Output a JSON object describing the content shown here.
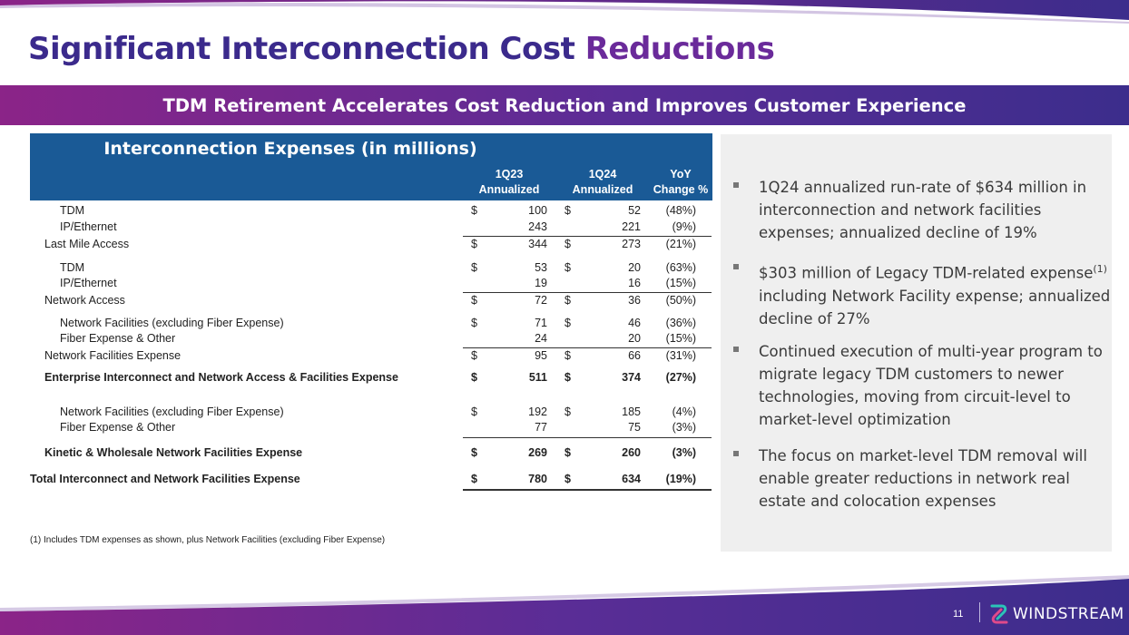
{
  "header": {
    "title_main": "Significant Interconnection Cost",
    "title_accent": "Reductions",
    "banner": "TDM Retirement Accelerates Cost Reduction and Improves Customer Experience"
  },
  "table": {
    "title": "Interconnection Expenses (in millions)",
    "col1": [
      "1Q23",
      "Annualized"
    ],
    "col2": [
      "1Q24",
      "Annualized"
    ],
    "col3": [
      "YoY",
      "Change %"
    ],
    "rows": [
      {
        "label": "TDM",
        "d1": "$",
        "v1": "100",
        "d2": "$",
        "v2": "52",
        "ch": "(48%)"
      },
      {
        "label": "IP/Ethernet",
        "d1": "",
        "v1": "243",
        "d2": "",
        "v2": "221",
        "ch": "(9%)"
      },
      {
        "label": "Last Mile Access",
        "d1": "$",
        "v1": "344",
        "d2": "$",
        "v2": "273",
        "ch": "(21%)"
      },
      {
        "label": "TDM",
        "d1": "$",
        "v1": "53",
        "d2": "$",
        "v2": "20",
        "ch": "(63%)"
      },
      {
        "label": "IP/Ethernet",
        "d1": "",
        "v1": "19",
        "d2": "",
        "v2": "16",
        "ch": "(15%)"
      },
      {
        "label": "Network Access",
        "d1": "$",
        "v1": "72",
        "d2": "$",
        "v2": "36",
        "ch": "(50%)"
      },
      {
        "label": "Network Facilities (excluding Fiber Expense)",
        "d1": "$",
        "v1": "71",
        "d2": "$",
        "v2": "46",
        "ch": "(36%)"
      },
      {
        "label": "Fiber Expense & Other",
        "d1": "",
        "v1": "24",
        "d2": "",
        "v2": "20",
        "ch": "(15%)"
      },
      {
        "label": "Network Facilities Expense",
        "d1": "$",
        "v1": "95",
        "d2": "$",
        "v2": "66",
        "ch": "(31%)"
      },
      {
        "label": "Enterprise Interconnect and Network Access & Facilities Expense",
        "d1": "$",
        "v1": "511",
        "d2": "$",
        "v2": "374",
        "ch": "(27%)"
      },
      {
        "label": "Network Facilities (excluding Fiber Expense)",
        "d1": "$",
        "v1": "192",
        "d2": "$",
        "v2": "185",
        "ch": "(4%)"
      },
      {
        "label": "Fiber Expense & Other",
        "d1": "",
        "v1": "77",
        "d2": "",
        "v2": "75",
        "ch": "(3%)"
      },
      {
        "label": "Kinetic & Wholesale Network Facilities Expense",
        "d1": "$",
        "v1": "269",
        "d2": "$",
        "v2": "260",
        "ch": "(3%)"
      },
      {
        "label": "Total Interconnect and Network Facilities Expense",
        "d1": "$",
        "v1": "780",
        "d2": "$",
        "v2": "634",
        "ch": "(19%)"
      }
    ],
    "footnote": "(1) Includes TDM expenses as shown, plus Network Facilities (excluding Fiber Expense)"
  },
  "bullets": [
    {
      "text": "1Q24 annualized run-rate of $634 million in interconnection and network facilities expenses; annualized decline of 19%"
    },
    {
      "pre": "$303 million of Legacy TDM-related expense",
      "sup": "(1)",
      "post": " including Network Facility expense; annualized decline of 27%"
    },
    {
      "text": "Continued execution of multi-year program to migrate legacy TDM customers to newer technologies,  moving from circuit-level to market-level optimization"
    },
    {
      "text": "The focus on market-level TDM removal will enable greater reductions in network real estate and colocation expenses"
    }
  ],
  "footer": {
    "page_number": "11",
    "brand": "WINDSTREAM"
  }
}
